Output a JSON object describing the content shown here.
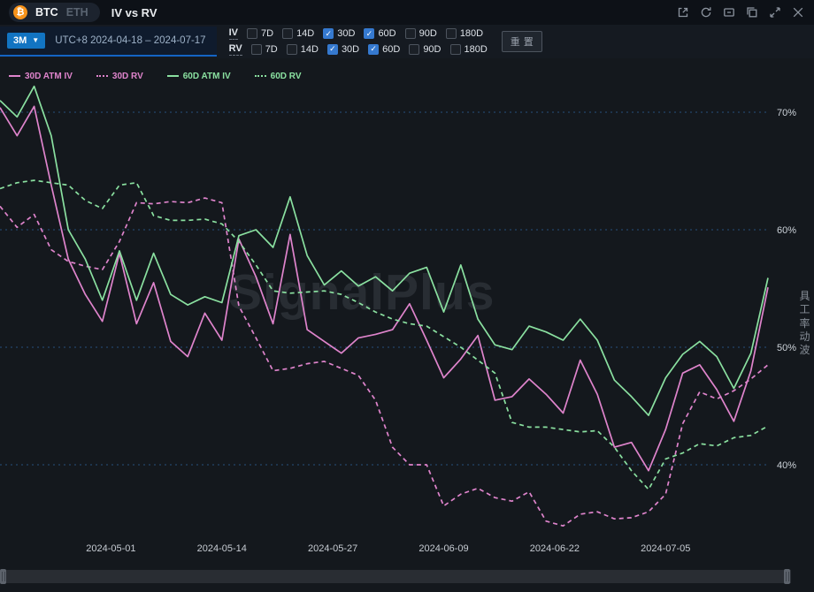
{
  "header": {
    "coin_tabs": [
      {
        "label": "BTC",
        "active": true
      },
      {
        "label": "ETH",
        "active": false
      }
    ],
    "title": "IV vs RV",
    "window_icons": [
      "open-external-icon",
      "refresh-icon",
      "archive-icon",
      "copy-icon",
      "expand-icon",
      "close-icon"
    ]
  },
  "toolbar": {
    "range_value": "3M",
    "date_range": "UTC+8 2024-04-18 – 2024-07-17",
    "tenor_rows": [
      {
        "label": "IV",
        "options": [
          {
            "label": "7D",
            "checked": false
          },
          {
            "label": "14D",
            "checked": false
          },
          {
            "label": "30D",
            "checked": true
          },
          {
            "label": "60D",
            "checked": true
          },
          {
            "label": "90D",
            "checked": false
          },
          {
            "label": "180D",
            "checked": false
          }
        ]
      },
      {
        "label": "RV",
        "options": [
          {
            "label": "7D",
            "checked": false
          },
          {
            "label": "14D",
            "checked": false
          },
          {
            "label": "30D",
            "checked": true
          },
          {
            "label": "60D",
            "checked": true
          },
          {
            "label": "90D",
            "checked": false
          },
          {
            "label": "180D",
            "checked": false
          }
        ]
      }
    ],
    "reset_label": "重置"
  },
  "legend": [
    {
      "label": "30D ATM IV",
      "color": "#df84cc",
      "dash": false
    },
    {
      "label": "30D RV",
      "color": "#df84cc",
      "dash": true
    },
    {
      "label": "60D ATM IV",
      "color": "#8ae0a0",
      "dash": false
    },
    {
      "label": "60D RV",
      "color": "#8ae0a0",
      "dash": true
    }
  ],
  "watermark": "SignalPlus",
  "right_axis_title": "波动率工具",
  "colors": {
    "pink": "#df84cc",
    "green": "#8ae0a0",
    "checked_blue": "#3579cf",
    "range_chip_blue": "#1274c2",
    "grid_blue": "#26517d",
    "bitcoin_orange": "#f7931a"
  },
  "chart_data": {
    "type": "line",
    "title": "IV vs RV",
    "x_start": "2024-04-18",
    "x_end": "2024-07-17",
    "x_unit": "days since 2024-04-18",
    "x_days": [
      0,
      2,
      4,
      6,
      8,
      10,
      12,
      14,
      16,
      18,
      20,
      22,
      24,
      26,
      28,
      30,
      32,
      34,
      36,
      38,
      40,
      42,
      44,
      46,
      48,
      50,
      52,
      54,
      56,
      58,
      60,
      62,
      64,
      66,
      68,
      70,
      72,
      74,
      76,
      78,
      80,
      82,
      84,
      86,
      88,
      90
    ],
    "series": [
      {
        "name": "30D ATM IV",
        "color": "#df84cc",
        "style": "solid",
        "values": [
          70.4,
          68.0,
          70.5,
          63.8,
          57.5,
          54.5,
          52.2,
          58.0,
          52.0,
          55.5,
          50.5,
          49.2,
          52.9,
          50.6,
          59.2,
          56.0,
          52.0,
          59.6,
          51.5,
          50.5,
          49.5,
          50.8,
          51.1,
          51.5,
          53.7,
          50.6,
          47.4,
          49.0,
          51.0,
          45.5,
          45.8,
          47.3,
          46.0,
          44.4,
          48.9,
          46.0,
          41.5,
          41.9,
          39.5,
          43.0,
          47.8,
          48.5,
          46.4,
          43.7,
          48.0,
          55.1
        ]
      },
      {
        "name": "30D RV",
        "color": "#df84cc",
        "style": "dashed",
        "values": [
          62.0,
          60.2,
          61.3,
          58.3,
          57.3,
          56.9,
          56.6,
          59.0,
          62.3,
          62.2,
          62.4,
          62.3,
          62.7,
          62.3,
          53.5,
          50.8,
          48.0,
          48.2,
          48.6,
          48.8,
          48.2,
          47.6,
          45.5,
          41.5,
          40.0,
          40.0,
          36.5,
          37.5,
          38.0,
          37.2,
          36.9,
          37.7,
          35.2,
          34.8,
          35.8,
          36.0,
          35.4,
          35.5,
          36.0,
          37.5,
          43.5,
          46.2,
          45.6,
          46.3,
          47.3,
          48.5
        ]
      },
      {
        "name": "60D ATM IV",
        "color": "#8ae0a0",
        "style": "solid",
        "values": [
          71.0,
          69.6,
          72.2,
          68.0,
          60.0,
          57.5,
          54.0,
          58.2,
          54.0,
          58.0,
          54.5,
          53.6,
          54.3,
          53.8,
          59.5,
          60.0,
          58.5,
          62.8,
          57.8,
          55.3,
          56.5,
          55.2,
          56.0,
          54.8,
          56.3,
          56.8,
          53.0,
          57.0,
          52.4,
          50.2,
          49.8,
          51.8,
          51.3,
          50.6,
          52.4,
          50.6,
          47.2,
          45.8,
          44.2,
          47.4,
          49.4,
          50.5,
          49.2,
          46.5,
          49.5,
          55.9
        ]
      },
      {
        "name": "60D RV",
        "color": "#8ae0a0",
        "style": "dashed",
        "values": [
          63.5,
          64.0,
          64.2,
          64.0,
          63.8,
          62.5,
          61.8,
          63.8,
          64.0,
          61.2,
          60.8,
          60.8,
          60.9,
          60.5,
          59.0,
          57.0,
          54.8,
          54.6,
          54.7,
          54.8,
          54.5,
          53.8,
          53.0,
          52.4,
          52.0,
          51.8,
          50.9,
          50.0,
          48.9,
          47.8,
          43.6,
          43.2,
          43.2,
          43.0,
          42.8,
          42.9,
          41.5,
          39.5,
          37.9,
          40.5,
          41.0,
          41.8,
          41.6,
          42.3,
          42.5,
          43.3
        ]
      }
    ],
    "y_ticks": [
      {
        "value": 70,
        "label": "70%"
      },
      {
        "value": 60,
        "label": "60%"
      },
      {
        "value": 50,
        "label": "50%"
      },
      {
        "value": 40,
        "label": "40%"
      }
    ],
    "x_ticks": [
      {
        "day": 13,
        "label": "2024-05-01"
      },
      {
        "day": 26,
        "label": "2024-05-14"
      },
      {
        "day": 39,
        "label": "2024-05-27"
      },
      {
        "day": 52,
        "label": "2024-06-09"
      },
      {
        "day": 65,
        "label": "2024-06-22"
      },
      {
        "day": 78,
        "label": "2024-07-05"
      }
    ],
    "ylim": [
      33.5,
      71.5
    ],
    "grid": "horizontal-dashed",
    "legend_position": "top-left"
  }
}
